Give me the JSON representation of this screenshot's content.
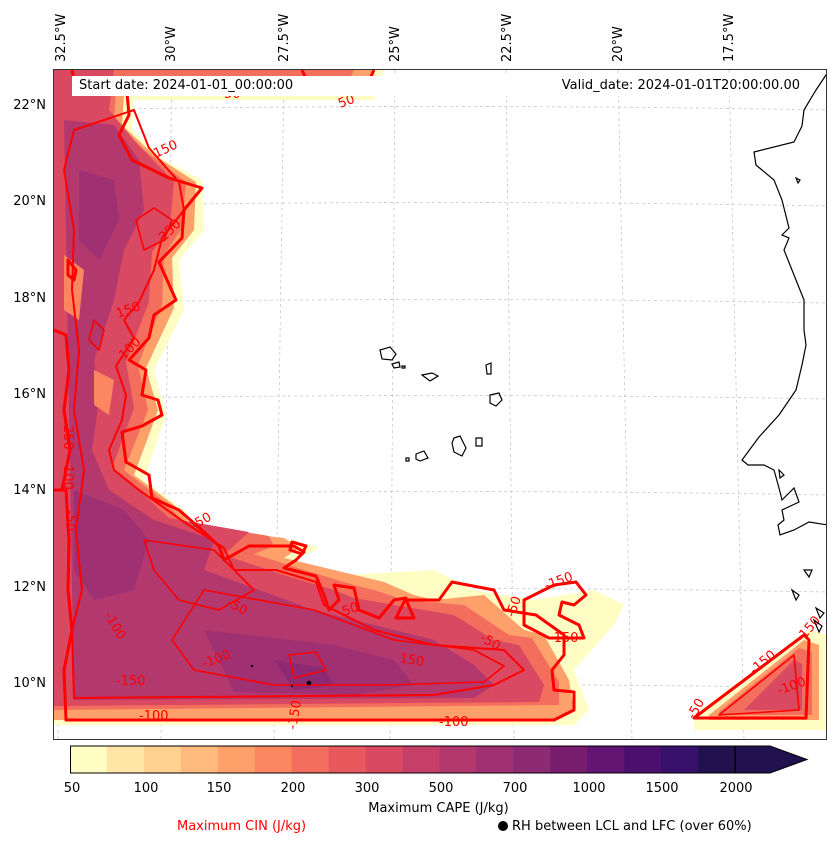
{
  "lon_labels": [
    "32.5°W",
    "30°W",
    "27.5°W",
    "25°W",
    "22.5°W",
    "20°W",
    "17.5°W"
  ],
  "lat_labels": [
    "22°N",
    "20°N",
    "18°N",
    "16°N",
    "14°N",
    "12°N",
    "10°N"
  ],
  "header": {
    "start_date": "Start date: 2024-01-01_00:00:00",
    "valid_date": "Valid_date: 2024-01-01T20:00:00.00"
  },
  "contour_labels": [
    "50",
    "50",
    "150",
    "250",
    "150",
    "100",
    "250",
    "100",
    "-50",
    "-50",
    "-100",
    "-50",
    "-100",
    "-150",
    "-100",
    "50",
    "150",
    "-150",
    "-50",
    "-100"
  ],
  "colorbar": {
    "tick_labels": [
      "50",
      "100",
      "150",
      "200",
      "300",
      "500",
      "700",
      "1000",
      "1500",
      "2000"
    ],
    "colors": [
      "#fffdc4",
      "#ffe6a6",
      "#fed191",
      "#feb97c",
      "#fda06a",
      "#fc8660",
      "#f46e5d",
      "#e8595e",
      "#d94962",
      "#c63f69",
      "#b2386e",
      "#9f3172",
      "#8c2a74",
      "#781c6d",
      "#631574",
      "#4d0f6e",
      "#36106b",
      "#21114e"
    ],
    "extend": "max"
  },
  "labels": {
    "cape": "Maximum CAPE (J/kg)",
    "cin": "Maximum CIN (J/kg)",
    "rh": "RH between LCL and LFC (over 60%)"
  },
  "colors": {
    "cin_contour": "#ff0000",
    "rh_dot": "#000000"
  }
}
